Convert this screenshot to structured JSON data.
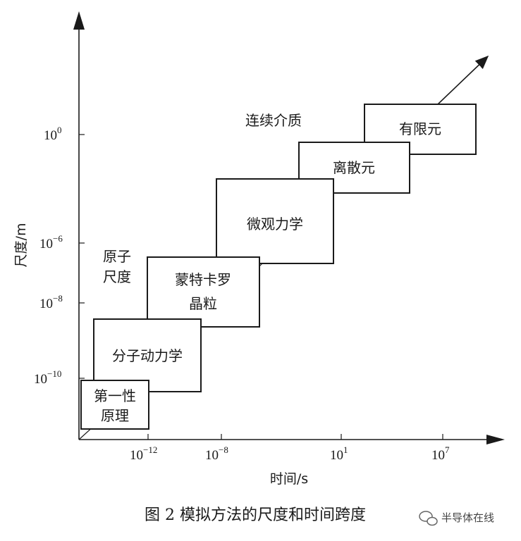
{
  "figure": {
    "y_axis_title": "尺度/m",
    "x_axis_title": "时间/s",
    "y_ticks": [
      {
        "base": "10",
        "exp": "0"
      },
      {
        "base": "10",
        "exp": "−6"
      },
      {
        "base": "10",
        "exp": "−8"
      },
      {
        "base": "10",
        "exp": "−10"
      }
    ],
    "x_ticks": [
      {
        "base": "10",
        "exp": "−12"
      },
      {
        "base": "10",
        "exp": "−8"
      },
      {
        "base": "10",
        "exp": "1"
      },
      {
        "base": "10",
        "exp": "7"
      }
    ],
    "boxes": [
      {
        "lines": [
          "第一性",
          "原理"
        ]
      },
      {
        "lines": [
          "分子动力学"
        ]
      },
      {
        "lines": [
          "蒙特卡罗",
          "晶粒"
        ]
      },
      {
        "lines": [
          "微观力学"
        ]
      },
      {
        "lines": [
          "离散元"
        ]
      },
      {
        "lines": [
          "有限元"
        ]
      }
    ],
    "free_labels": {
      "atomic_scale": [
        "原子",
        "尺度"
      ],
      "continuum": "连续介质"
    },
    "caption": "图 2 模拟方法的尺度和时间跨度",
    "watermark": "半导体在线"
  }
}
